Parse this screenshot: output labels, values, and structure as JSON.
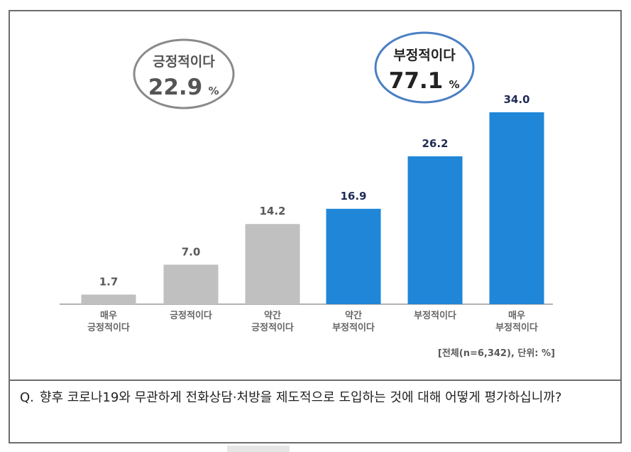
{
  "chart_data": {
    "type": "bar",
    "categories": [
      [
        "매우",
        "긍정적이다"
      ],
      [
        "긍정적이다"
      ],
      [
        "약간",
        "긍정적이다"
      ],
      [
        "약간",
        "부정적이다"
      ],
      [
        "부정적이다"
      ],
      [
        "매우",
        "부정적이다"
      ]
    ],
    "values": [
      1.7,
      7.0,
      14.2,
      16.9,
      26.2,
      34.0
    ],
    "value_labels": [
      "1.7",
      "7.0",
      "14.2",
      "16.9",
      "26.2",
      "34.0"
    ],
    "bar_colors": [
      "#c0c0c0",
      "#c0c0c0",
      "#c0c0c0",
      "#1f86d8",
      "#1f86d8",
      "#1f86d8"
    ],
    "value_label_colors": [
      "#595959",
      "#595959",
      "#595959",
      "#1f2a55",
      "#1f2a55",
      "#1f2a55"
    ],
    "ylim": [
      0,
      34
    ],
    "grid": false,
    "note": "[전체(n=6,342), 단위: %]",
    "groups": [
      {
        "label": "긍정적이다",
        "value": "22.9",
        "unit": "%",
        "color": "#8a8a8a",
        "text_color": "#555555"
      },
      {
        "label": "부정적이다",
        "value": "77.1",
        "unit": "%",
        "color": "#4a80c4",
        "text_color": "#222222"
      }
    ]
  },
  "question": {
    "marker": "Q.",
    "text": "향후 코로나19와 무관하게 전화상담·처방을 제도적으로 도입하는 것에 대해 어떻게 평가하십니까?"
  }
}
